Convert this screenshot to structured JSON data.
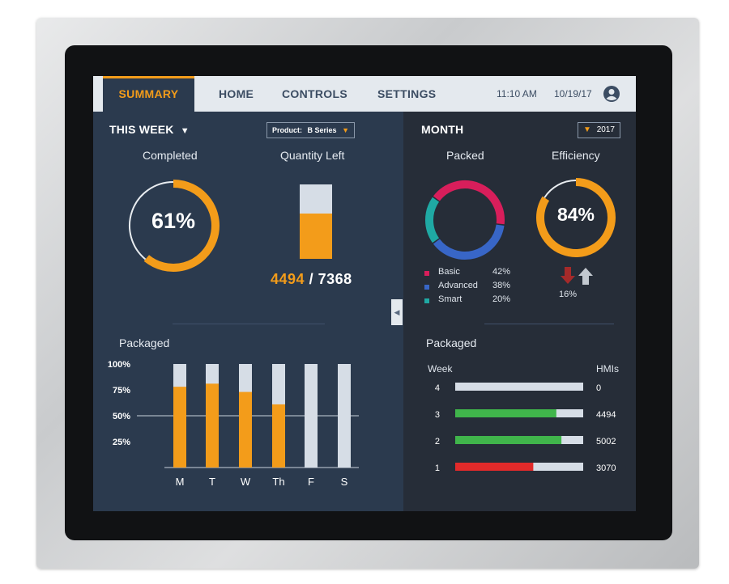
{
  "nav": {
    "tabs": [
      {
        "label": "SUMMARY",
        "active": true
      },
      {
        "label": "HOME",
        "active": false
      },
      {
        "label": "CONTROLS",
        "active": false
      },
      {
        "label": "SETTINGS",
        "active": false
      }
    ],
    "time": "11:10 AM",
    "date": "10/19/17",
    "icons": {
      "avatar": "user-circle-icon"
    }
  },
  "left": {
    "period_label": "THIS WEEK",
    "product_prefix": "Product:",
    "product_value": "B Series",
    "completed": {
      "label": "Completed",
      "value_text": "61%",
      "percent": 61
    },
    "quantity_left": {
      "label": "Quantity Left",
      "current": "4494",
      "separator": "/",
      "total": "7368",
      "fill_fraction": 0.61
    },
    "packaged": {
      "title": "Packaged"
    }
  },
  "right": {
    "period_label": "MONTH",
    "year": "2017",
    "packed": {
      "label": "Packed",
      "legend": [
        {
          "name": "Basic",
          "value": "42%",
          "percent": 42,
          "color": "#d81e5b"
        },
        {
          "name": "Advanced",
          "value": "38%",
          "percent": 38,
          "color": "#3866c7"
        },
        {
          "name": "Smart",
          "value": "20%",
          "percent": 20,
          "color": "#1fa9a4"
        }
      ]
    },
    "efficiency": {
      "label": "Efficiency",
      "value_text": "84%",
      "percent": 84,
      "change": "16%"
    },
    "packaged": {
      "title": "Packaged",
      "col_week": "Week",
      "col_hmis": "HMIs"
    }
  },
  "colors": {
    "accent": "#f39c1a",
    "nav_bg": "#e4e9ee",
    "panel_left": "#2b3a4e",
    "panel_right": "#262d38",
    "green": "#40b54b",
    "red": "#e22a2a"
  },
  "chart_data": [
    {
      "type": "bar",
      "title": "Packaged",
      "categories": [
        "M",
        "T",
        "W",
        "Th",
        "F",
        "S"
      ],
      "values": [
        78,
        81,
        73,
        61,
        0,
        0
      ],
      "ylim": [
        0,
        100
      ],
      "yticks": [
        "25%",
        "50%",
        "75%",
        "100%"
      ],
      "reference_line": 50,
      "bar_color": "#f39c1a",
      "track_color": "#d6dde6"
    },
    {
      "type": "bar",
      "orientation": "horizontal",
      "title": "Packaged",
      "categories": [
        "4",
        "3",
        "2",
        "1"
      ],
      "fill_percent": [
        0,
        79,
        83,
        61
      ],
      "values": [
        "0",
        "4494",
        "5002",
        "3070"
      ],
      "colors": [
        "#40b54b",
        "#40b54b",
        "#40b54b",
        "#e22a2a"
      ],
      "xlabel": "Week",
      "ylabel": "HMIs"
    }
  ]
}
